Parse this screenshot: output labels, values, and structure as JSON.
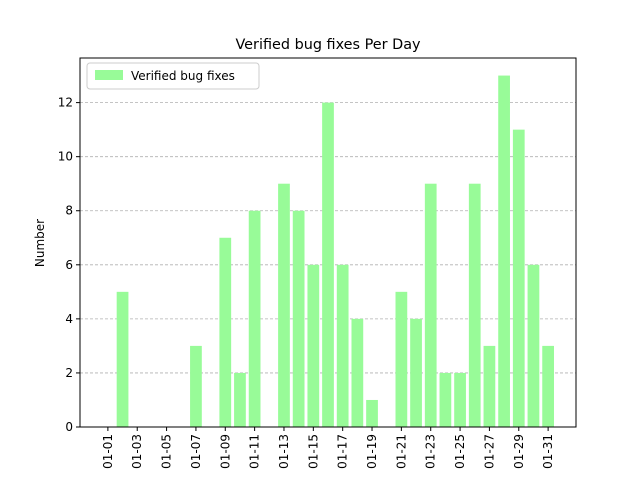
{
  "chart_data": {
    "type": "bar",
    "title": "Verified bug fixes Per Day",
    "ylabel": "Number",
    "categories": [
      "01-01",
      null,
      "01-03",
      null,
      "01-05",
      null,
      "01-07",
      null,
      "01-09",
      null,
      "01-11",
      null,
      "01-13",
      null,
      "01-15",
      null,
      "01-17",
      null,
      "01-19",
      null,
      "01-21",
      null,
      "01-23",
      null,
      "01-25",
      null,
      "01-27",
      null,
      "01-29",
      null,
      "01-31"
    ],
    "series": [
      {
        "name": "Verified bug fixes",
        "color": "#98fb98",
        "values": [
          0,
          5,
          0,
          0,
          0,
          0,
          3,
          0,
          7,
          2,
          8,
          0,
          9,
          8,
          6,
          12,
          6,
          4,
          1,
          0,
          5,
          4,
          9,
          2,
          2,
          9,
          3,
          13,
          11,
          6,
          3
        ]
      }
    ],
    "ylim": [
      0,
      13.65
    ],
    "yticks": [
      0,
      2,
      4,
      6,
      8,
      10,
      12
    ],
    "grid": true,
    "legend": "upper left"
  }
}
